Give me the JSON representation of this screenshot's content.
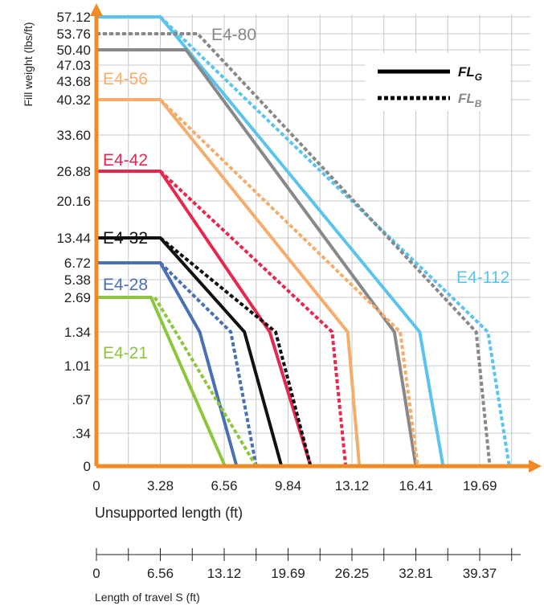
{
  "chart_data": {
    "type": "line",
    "ylabel": "Fill weight (lbs/ft)",
    "xlabel": "Unsupported length (ft)",
    "x2label": "Length of travel S (ft)",
    "x_ticks": [
      "0",
      "3.28",
      "6.56",
      "9.84",
      "13.12",
      "16.41",
      "19.69"
    ],
    "x_tick_values": [
      0,
      3.28,
      6.56,
      9.84,
      13.12,
      16.41,
      19.69
    ],
    "x2_ticks": [
      "0",
      "6.56",
      "13.12",
      "19.69",
      "26.25",
      "32.81",
      "39.37"
    ],
    "y_ticks": [
      "0",
      ".34",
      ".67",
      "1.01",
      "1.34",
      "2.69",
      "5.38",
      "6.72",
      "13.44",
      "20.16",
      "26.88",
      "33.60",
      "40.32",
      "43.68",
      "47.03",
      "50.40",
      "53.76",
      "57.12"
    ],
    "y_tick_values": [
      0,
      0.34,
      0.67,
      1.01,
      1.34,
      2.69,
      5.38,
      6.72,
      13.44,
      20.16,
      26.88,
      33.6,
      40.32,
      43.68,
      47.03,
      50.4,
      53.76,
      57.12
    ],
    "grid": true,
    "legend": {
      "placement": "top-right",
      "items": [
        {
          "style": "solid",
          "text": "FL",
          "sub": "G"
        },
        {
          "style": "dotted",
          "text": "FL",
          "sub": "B"
        }
      ]
    },
    "series": [
      {
        "name": "E4-112",
        "color": "#5bc4ee",
        "solid": [
          [
            0,
            57.12
          ],
          [
            3.28,
            57.12
          ],
          [
            16.6,
            1.34
          ],
          [
            17.8,
            0
          ]
        ],
        "dotted": [
          [
            3.28,
            57.12
          ],
          [
            20.1,
            1.34
          ],
          [
            21.2,
            0
          ]
        ]
      },
      {
        "name": "E4-80",
        "color": "#888888",
        "solid": [
          [
            0,
            50.4
          ],
          [
            4.6,
            50.4
          ],
          [
            15.3,
            1.34
          ],
          [
            16.4,
            0
          ]
        ],
        "dotted": [
          [
            0,
            53.76
          ],
          [
            5.2,
            53.76
          ],
          [
            19.5,
            1.34
          ],
          [
            20.2,
            0
          ]
        ]
      },
      {
        "name": "E4-56",
        "color": "#f5ad6c",
        "solid": [
          [
            0,
            40.32
          ],
          [
            3.28,
            40.32
          ],
          [
            12.9,
            1.34
          ],
          [
            13.5,
            0
          ]
        ],
        "dotted": [
          [
            3.28,
            40.32
          ],
          [
            15.6,
            1.34
          ],
          [
            16.5,
            0
          ]
        ]
      },
      {
        "name": "E4-42",
        "color": "#e5284e",
        "solid": [
          [
            0,
            26.88
          ],
          [
            3.28,
            26.88
          ],
          [
            8.9,
            1.34
          ],
          [
            11.0,
            0
          ]
        ],
        "dotted": [
          [
            3.28,
            26.88
          ],
          [
            12.1,
            1.34
          ],
          [
            12.8,
            0
          ]
        ]
      },
      {
        "name": "E4-32",
        "color": "#111111",
        "solid": [
          [
            0,
            13.44
          ],
          [
            3.28,
            13.44
          ],
          [
            7.6,
            1.34
          ],
          [
            9.5,
            0
          ]
        ],
        "dotted": [
          [
            3.28,
            13.44
          ],
          [
            9.2,
            1.34
          ],
          [
            11.0,
            0
          ]
        ]
      },
      {
        "name": "E4-28",
        "color": "#4a6fb3",
        "solid": [
          [
            0,
            6.72
          ],
          [
            3.28,
            6.72
          ],
          [
            5.3,
            1.34
          ],
          [
            7.2,
            0
          ]
        ],
        "dotted": [
          [
            3.28,
            6.72
          ],
          [
            6.9,
            1.34
          ],
          [
            8.2,
            0
          ]
        ]
      },
      {
        "name": "E4-21",
        "color": "#8cc63f",
        "solid": [
          [
            0,
            2.69
          ],
          [
            2.8,
            2.69
          ],
          [
            6.6,
            0
          ]
        ],
        "dotted": [
          [
            3.0,
            2.69
          ],
          [
            8.2,
            0
          ]
        ]
      }
    ],
    "axis_color": "#f08a24"
  }
}
